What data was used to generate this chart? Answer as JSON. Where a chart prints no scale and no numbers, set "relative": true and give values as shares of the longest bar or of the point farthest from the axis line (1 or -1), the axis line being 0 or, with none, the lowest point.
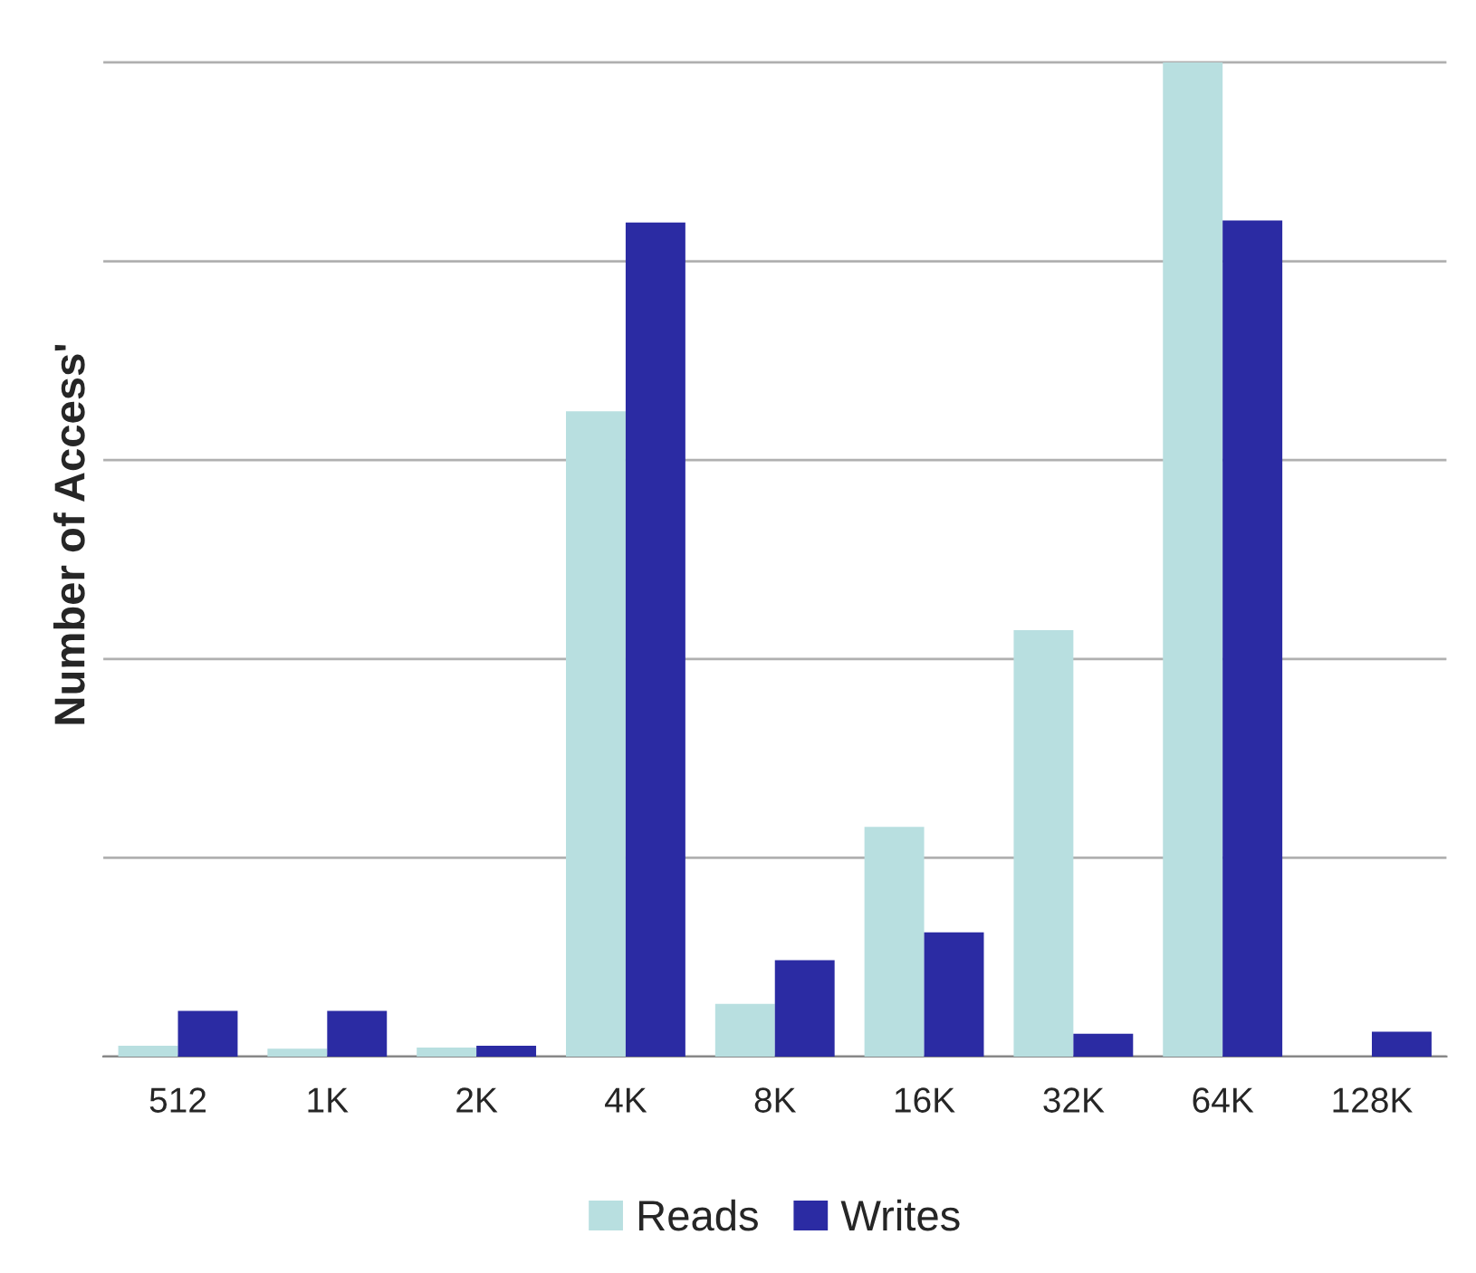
{
  "chart_data": {
    "type": "bar",
    "relative": true,
    "ylabel": "Number of Access'",
    "categories": [
      "512",
      "1K",
      "2K",
      "4K",
      "8K",
      "16K",
      "32K",
      "64K",
      "128K"
    ],
    "series": [
      {
        "name": "Reads",
        "color": "#b8dfe0",
        "values": [
          0.011,
          0.008,
          0.009,
          0.649,
          0.053,
          0.231,
          0.429,
          1,
          0
        ]
      },
      {
        "name": "Writes",
        "color": "#2b2ba3",
        "values": [
          0.046,
          0.046,
          0.011,
          0.839,
          0.097,
          0.125,
          0.023,
          0.841,
          0.025
        ]
      }
    ],
    "grid": "y",
    "legend": "bottom"
  }
}
